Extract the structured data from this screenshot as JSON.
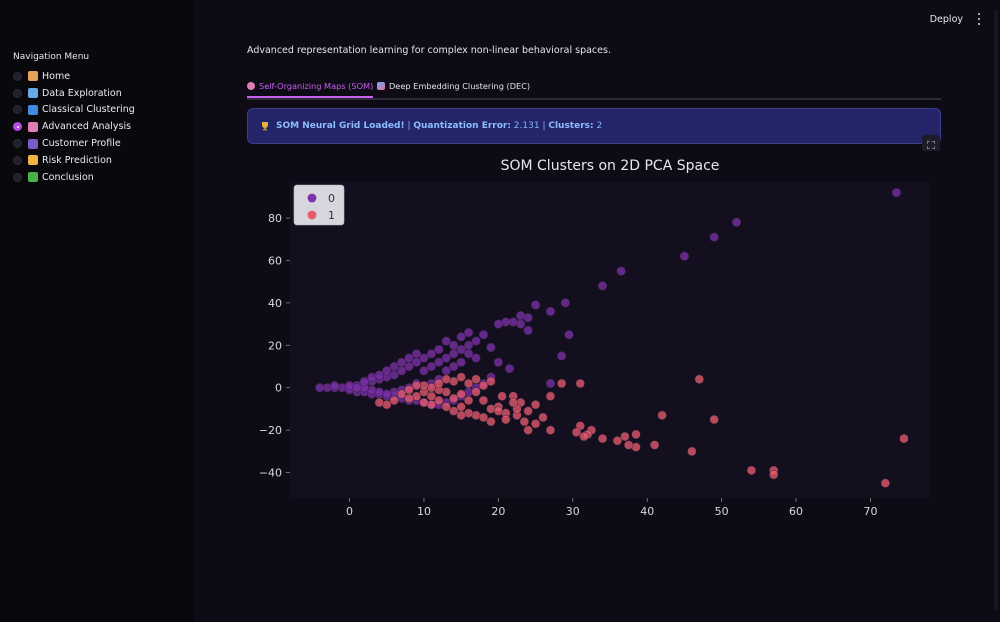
{
  "sidebar": {
    "title": "Navigation Menu",
    "items": [
      {
        "label": "Home",
        "icon": "house-icon",
        "color": "#e6a25a",
        "selected": false
      },
      {
        "label": "Data Exploration",
        "icon": "bar-chart-icon",
        "color": "#6aa9e8",
        "selected": false
      },
      {
        "label": "Classical Clustering",
        "icon": "circle-icon",
        "color": "#3f8be0",
        "selected": false
      },
      {
        "label": "Advanced Analysis",
        "icon": "brain-icon",
        "color": "#e27cb6",
        "selected": true
      },
      {
        "label": "Customer Profile",
        "icon": "person-icon",
        "color": "#7a5cc8",
        "selected": false
      },
      {
        "label": "Risk Prediction",
        "icon": "warning-icon",
        "color": "#f0b440",
        "selected": false
      },
      {
        "label": "Conclusion",
        "icon": "check-icon",
        "color": "#46b24a",
        "selected": false
      }
    ]
  },
  "header": {
    "deploy_label": "Deploy"
  },
  "main": {
    "subtitle": "Advanced representation learning for complex non-linear behavioral spaces.",
    "tabs": [
      {
        "label": "Self-Organizing Maps (SOM)",
        "active": true
      },
      {
        "label": "Deep Embedding Clustering (DEC)",
        "active": false
      }
    ],
    "banner": {
      "prefix": "SOM Neural Grid Loaded!",
      "sep1": " | ",
      "error_label": "Quantization Error:",
      "error_value": " 2.131",
      "sep2": " | ",
      "clusters_label": "Clusters:",
      "clusters_value": " 2"
    }
  },
  "colors": {
    "accent": "#c560f0",
    "cluster0": "#7b2fa8",
    "cluster1": "#e65a6e",
    "banner_bg": "#232568"
  },
  "chart_data": {
    "type": "scatter",
    "title": "SOM Clusters on 2D PCA Space",
    "xlabel": "",
    "ylabel": "",
    "xlim": [
      -8,
      78
    ],
    "ylim": [
      -52,
      97
    ],
    "xticks": [
      0,
      10,
      20,
      30,
      40,
      50,
      60,
      70
    ],
    "yticks": [
      -40,
      -20,
      0,
      20,
      40,
      60,
      80
    ],
    "legend_position": "top-left",
    "grid": false,
    "series": [
      {
        "name": "0",
        "color": "#7b2fa8",
        "points": [
          [
            73.5,
            92
          ],
          [
            52,
            78
          ],
          [
            49,
            71
          ],
          [
            45,
            62
          ],
          [
            36.5,
            55
          ],
          [
            34,
            48
          ],
          [
            29,
            40
          ],
          [
            27,
            36
          ],
          [
            25,
            39
          ],
          [
            23,
            34
          ],
          [
            24,
            33
          ],
          [
            22,
            31
          ],
          [
            21,
            31
          ],
          [
            23,
            30
          ],
          [
            29.5,
            25
          ],
          [
            24,
            27
          ],
          [
            20,
            30
          ],
          [
            18,
            25
          ],
          [
            17,
            22
          ],
          [
            16,
            26
          ],
          [
            15,
            24
          ],
          [
            14,
            20
          ],
          [
            13,
            22
          ],
          [
            12,
            18
          ],
          [
            11,
            16
          ],
          [
            10,
            14
          ],
          [
            9,
            12
          ],
          [
            8,
            10
          ],
          [
            7,
            8
          ],
          [
            6,
            6
          ],
          [
            5,
            5
          ],
          [
            4,
            4
          ],
          [
            3,
            3
          ],
          [
            2,
            2
          ],
          [
            1,
            1
          ],
          [
            0,
            0
          ],
          [
            -1,
            0
          ],
          [
            -2,
            0
          ],
          [
            -3,
            0
          ],
          [
            -4,
            0
          ],
          [
            0,
            -1
          ],
          [
            1,
            -2
          ],
          [
            2,
            -2
          ],
          [
            3,
            -3
          ],
          [
            4,
            -3
          ],
          [
            5,
            -4
          ],
          [
            6,
            -4
          ],
          [
            7,
            -5
          ],
          [
            8,
            -6
          ],
          [
            9,
            -6
          ],
          [
            10,
            -7
          ],
          [
            11,
            -8
          ],
          [
            12,
            -8
          ],
          [
            13,
            -7
          ],
          [
            14,
            -6
          ],
          [
            15,
            -4
          ],
          [
            16,
            -2
          ],
          [
            17,
            0
          ],
          [
            18,
            2
          ],
          [
            19,
            5
          ],
          [
            20,
            12
          ],
          [
            28.5,
            15
          ],
          [
            21.5,
            9
          ],
          [
            27,
            2
          ],
          [
            10,
            8
          ],
          [
            11,
            10
          ],
          [
            12,
            12
          ],
          [
            13,
            14
          ],
          [
            14,
            16
          ],
          [
            15,
            18
          ],
          [
            16,
            20
          ],
          [
            12,
            4
          ],
          [
            11,
            2
          ],
          [
            9,
            2
          ],
          [
            8,
            0
          ],
          [
            7,
            -1
          ],
          [
            6,
            -2
          ],
          [
            5,
            -3
          ],
          [
            4,
            -2
          ],
          [
            3,
            -1
          ],
          [
            2,
            0
          ],
          [
            1,
            0
          ],
          [
            0,
            1
          ],
          [
            -2,
            1
          ],
          [
            2,
            3
          ],
          [
            3,
            5
          ],
          [
            4,
            6
          ],
          [
            5,
            8
          ],
          [
            6,
            10
          ],
          [
            7,
            12
          ],
          [
            8,
            14
          ],
          [
            9,
            16
          ],
          [
            17,
            14
          ],
          [
            15,
            12
          ],
          [
            14,
            10
          ],
          [
            13,
            8
          ],
          [
            16,
            16
          ],
          [
            19,
            19
          ]
        ]
      },
      {
        "name": "1",
        "color": "#e65a6e",
        "points": [
          [
            74.5,
            -24
          ],
          [
            72,
            -45
          ],
          [
            57,
            -39
          ],
          [
            57,
            -41
          ],
          [
            54,
            -39
          ],
          [
            49,
            -15
          ],
          [
            47,
            4
          ],
          [
            46,
            -30
          ],
          [
            42,
            -13
          ],
          [
            41,
            -27
          ],
          [
            38.5,
            -22
          ],
          [
            38.5,
            -28
          ],
          [
            37,
            -23
          ],
          [
            37.5,
            -27
          ],
          [
            36,
            -25
          ],
          [
            34,
            -24
          ],
          [
            32.5,
            -20
          ],
          [
            32,
            -22
          ],
          [
            31.5,
            -23
          ],
          [
            31,
            -18
          ],
          [
            30.5,
            -21
          ],
          [
            31,
            2
          ],
          [
            28.5,
            2
          ],
          [
            27,
            -20
          ],
          [
            25,
            -17
          ],
          [
            24,
            -20
          ],
          [
            23.5,
            -16
          ],
          [
            23,
            -7
          ],
          [
            22.5,
            -13
          ],
          [
            22,
            -4
          ],
          [
            22.5,
            -10
          ],
          [
            21,
            -12
          ],
          [
            20,
            -9
          ],
          [
            20.5,
            -4
          ],
          [
            19,
            -16
          ],
          [
            19,
            -10
          ],
          [
            18,
            -6
          ],
          [
            17,
            -13
          ],
          [
            17,
            -2
          ],
          [
            16,
            -12
          ],
          [
            16,
            -6
          ],
          [
            15,
            -9
          ],
          [
            15,
            -3
          ],
          [
            14,
            -11
          ],
          [
            14,
            -5
          ],
          [
            13,
            -2
          ],
          [
            13,
            -9
          ],
          [
            12,
            -6
          ],
          [
            12,
            -1
          ],
          [
            11,
            -4
          ],
          [
            11,
            -8
          ],
          [
            10,
            -7
          ],
          [
            10,
            -2
          ],
          [
            9,
            -4
          ],
          [
            8,
            -5
          ],
          [
            7,
            -3
          ],
          [
            6,
            -6
          ],
          [
            5,
            -8
          ],
          [
            4,
            -7
          ],
          [
            17,
            4
          ],
          [
            18,
            1
          ],
          [
            19,
            3
          ],
          [
            16,
            2
          ],
          [
            15,
            5
          ],
          [
            14,
            3
          ],
          [
            13,
            4
          ],
          [
            12,
            2
          ],
          [
            11,
            0
          ],
          [
            10,
            1
          ],
          [
            9,
            1
          ],
          [
            8,
            -1
          ],
          [
            27,
            -4
          ],
          [
            25,
            -8
          ],
          [
            26,
            -14
          ],
          [
            21,
            -15
          ],
          [
            18,
            -14
          ],
          [
            15,
            -13
          ],
          [
            20,
            -11
          ],
          [
            22,
            -7
          ],
          [
            24,
            -11
          ]
        ]
      }
    ]
  }
}
